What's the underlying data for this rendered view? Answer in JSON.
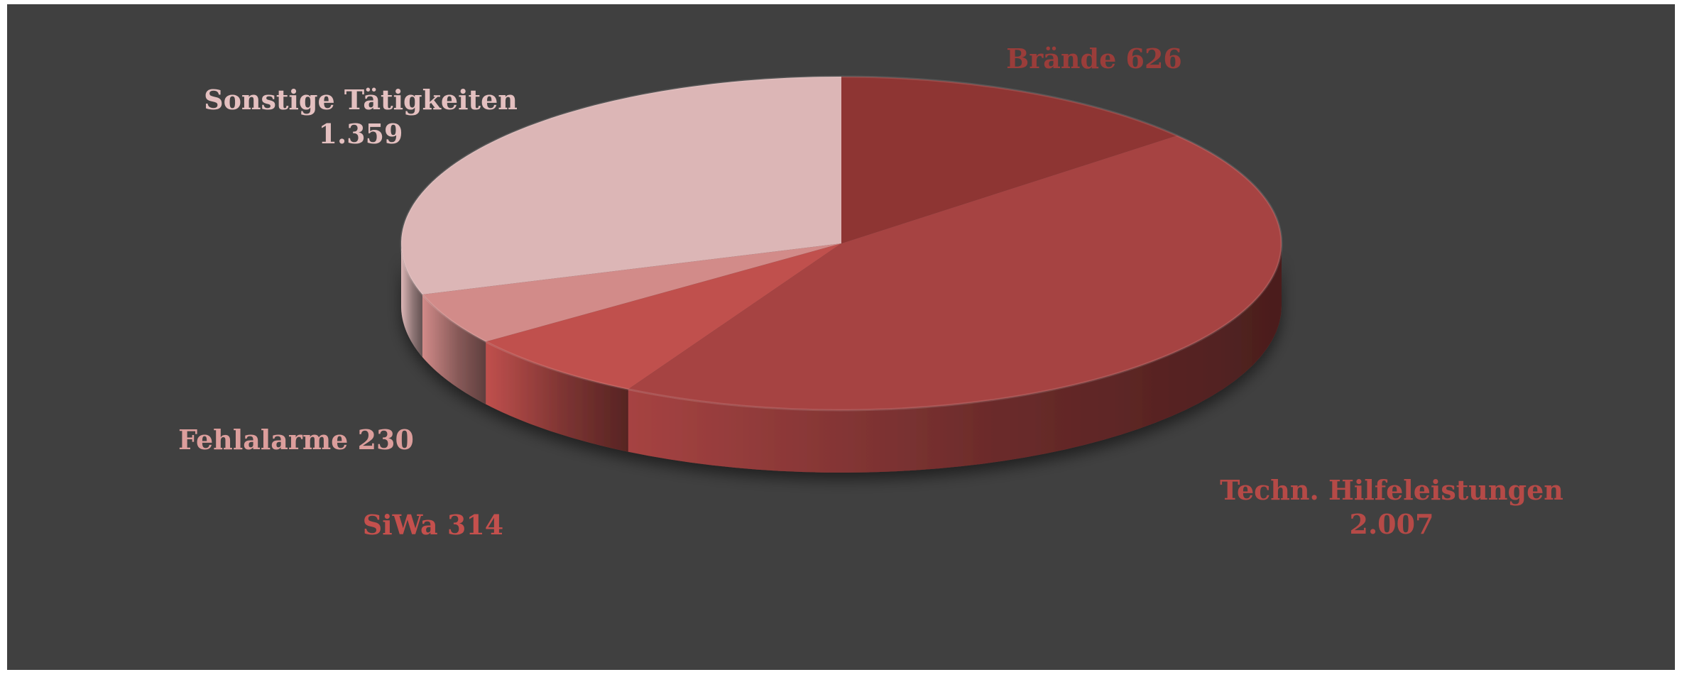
{
  "chart_data": {
    "type": "pie",
    "three_d": true,
    "title": "",
    "legend": "none",
    "slices": [
      {
        "label": "Brände",
        "value": 626,
        "value_text": "626",
        "color": "#8e3533",
        "label_color": "#9a3d3a"
      },
      {
        "label": "Techn. Hilfeleistungen",
        "value": 2007,
        "value_text": "2.007",
        "color": "#a64342",
        "label_color": "#b54a47"
      },
      {
        "label": "SiWa",
        "value": 314,
        "value_text": "314",
        "color": "#c0504d",
        "label_color": "#c4504d"
      },
      {
        "label": "Fehlalarme",
        "value": 230,
        "value_text": "230",
        "color": "#d28b89",
        "label_color": "#dc9e9c"
      },
      {
        "label": "Sonstige Tätigkeiten",
        "value": 1359,
        "value_text": "1.359",
        "color": "#dcb6b6",
        "label_color": "#e4c0c0"
      }
    ]
  }
}
